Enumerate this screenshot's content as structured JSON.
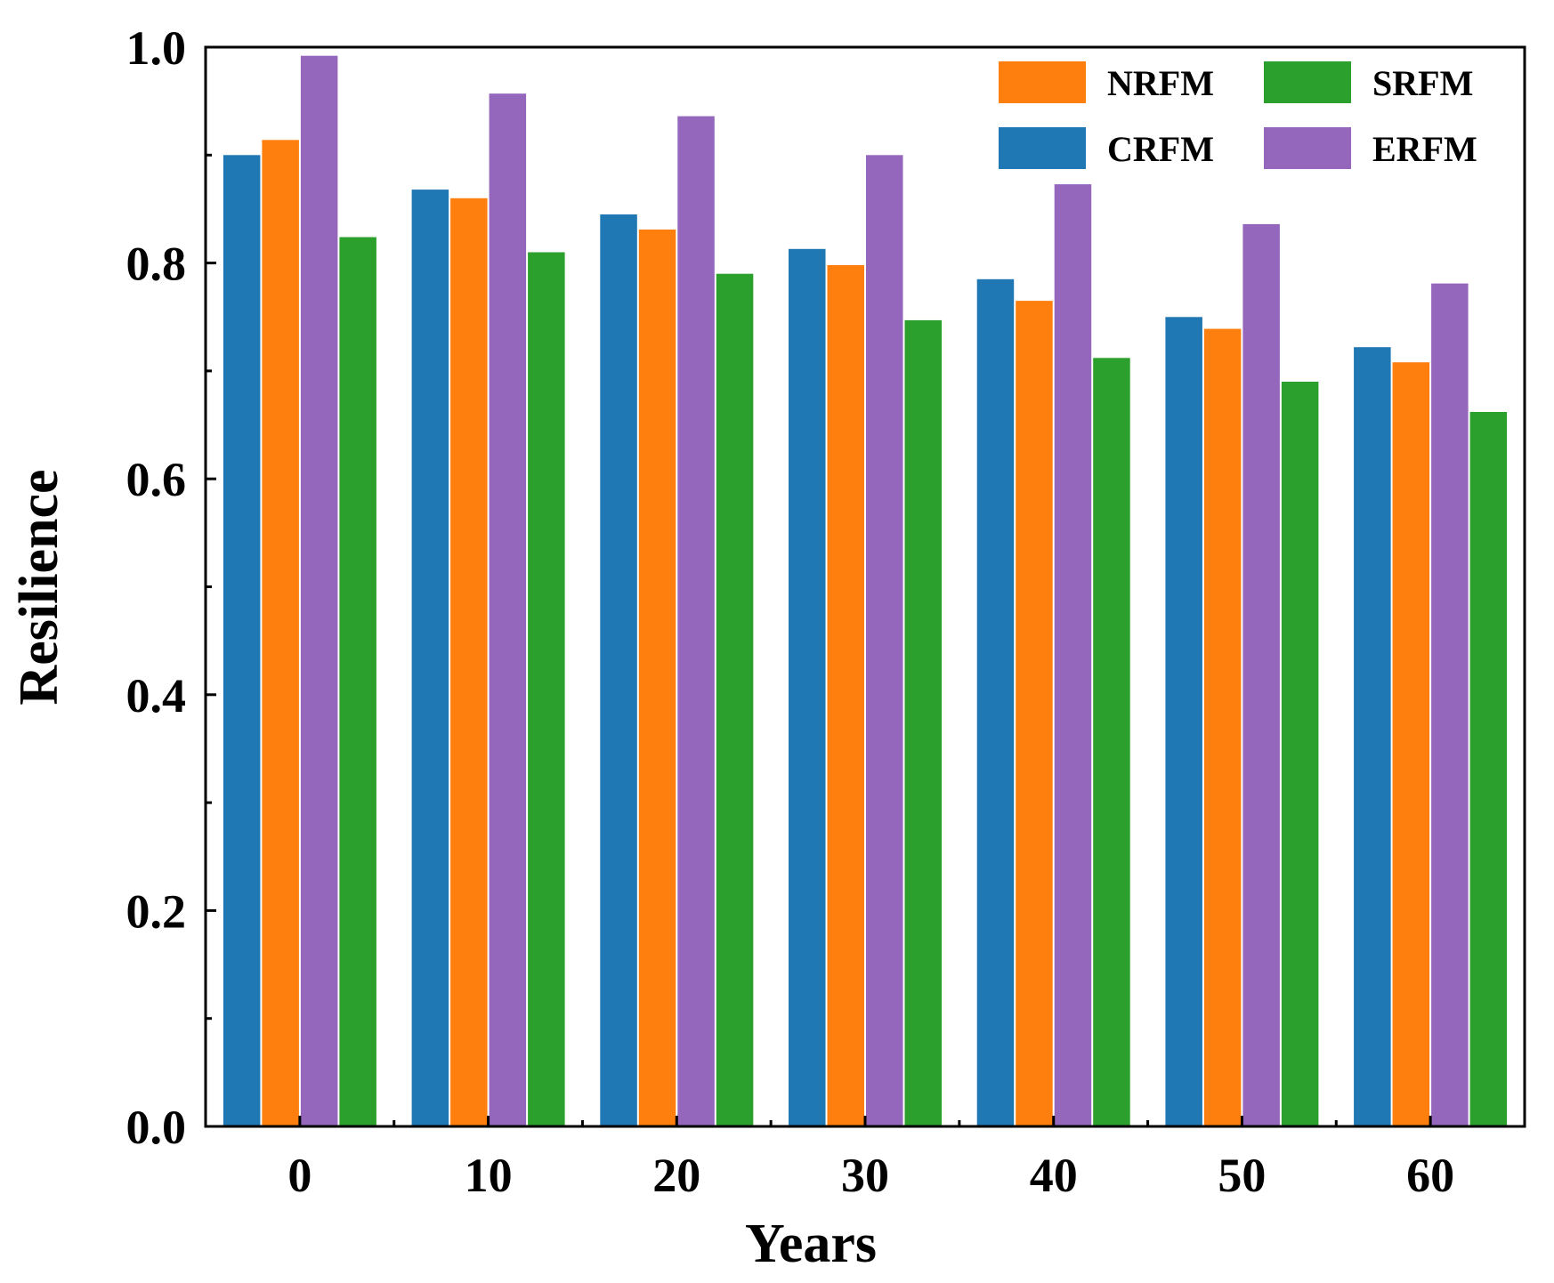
{
  "chart_data": {
    "type": "bar",
    "title": "",
    "xlabel": "Years",
    "ylabel": "Resilience",
    "categories": [
      "0",
      "10",
      "20",
      "30",
      "40",
      "50",
      "60"
    ],
    "series": [
      {
        "name": "CRFM",
        "color": "#1f77b4",
        "values": [
          0.9,
          0.868,
          0.845,
          0.813,
          0.785,
          0.75,
          0.722
        ]
      },
      {
        "name": "NRFM",
        "color": "#ff7f0e",
        "values": [
          0.914,
          0.86,
          0.831,
          0.798,
          0.765,
          0.739,
          0.708
        ]
      },
      {
        "name": "ERFM",
        "color": "#9467bd",
        "values": [
          0.992,
          0.957,
          0.936,
          0.9,
          0.873,
          0.836,
          0.781
        ]
      },
      {
        "name": "SRFM",
        "color": "#2ca02c",
        "values": [
          0.824,
          0.81,
          0.79,
          0.747,
          0.712,
          0.69,
          0.662
        ]
      }
    ],
    "ylim": [
      0.0,
      1.0
    ],
    "yticks": [
      "0.0",
      "0.2",
      "0.4",
      "0.6",
      "0.8",
      "1.0"
    ],
    "ytick_values": [
      0.0,
      0.2,
      0.4,
      0.6,
      0.8,
      1.0
    ],
    "legend": {
      "placement": "top-right",
      "order": [
        "NRFM",
        "SRFM",
        "CRFM",
        "ERFM"
      ]
    },
    "grid": false
  }
}
